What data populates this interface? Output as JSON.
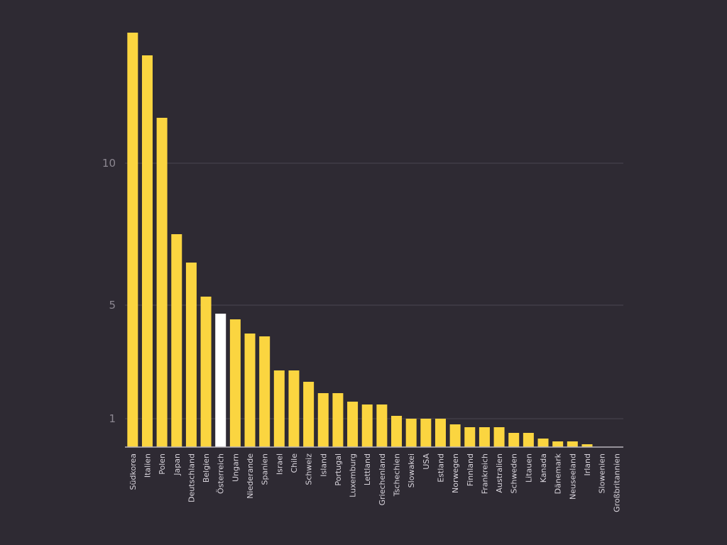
{
  "chart_data": {
    "type": "bar",
    "categories": [
      "Südkorea",
      "Italien",
      "Polen",
      "Japan",
      "Deutschland",
      "Belgien",
      "Österreich",
      "Ungarn",
      "Niederande",
      "Spanien",
      "Israel",
      "Chile",
      "Schweiz",
      "Island",
      "Portugal",
      "Luxemburg",
      "Lettland",
      "Griechenland",
      "Tschechien",
      "Slowakei",
      "USA",
      "Estland",
      "Norwegen",
      "Finnland",
      "Frankreich",
      "Australien",
      "Schweden",
      "Litauen",
      "Kanada",
      "Dänemark",
      "Neuseeland",
      "Irland",
      "Slowenien",
      "Großbritannien"
    ],
    "values": [
      14.6,
      13.8,
      11.6,
      7.5,
      6.5,
      5.3,
      4.7,
      4.5,
      4.0,
      3.9,
      2.7,
      2.7,
      2.3,
      1.9,
      1.9,
      1.6,
      1.5,
      1.5,
      1.1,
      1.0,
      1.0,
      1.0,
      0.8,
      0.7,
      0.7,
      0.7,
      0.5,
      0.5,
      0.3,
      0.2,
      0.2,
      0.1,
      0.0,
      0.0
    ],
    "highlight_index": 6,
    "ytick_labels": [
      "1",
      "5",
      "10"
    ],
    "yticks": [
      1,
      5,
      10
    ],
    "ylim": [
      0,
      14.6
    ],
    "grid": true,
    "colors": {
      "bar": "#fbd540",
      "highlight": "#ffffff",
      "background": "#2e2a33"
    }
  }
}
